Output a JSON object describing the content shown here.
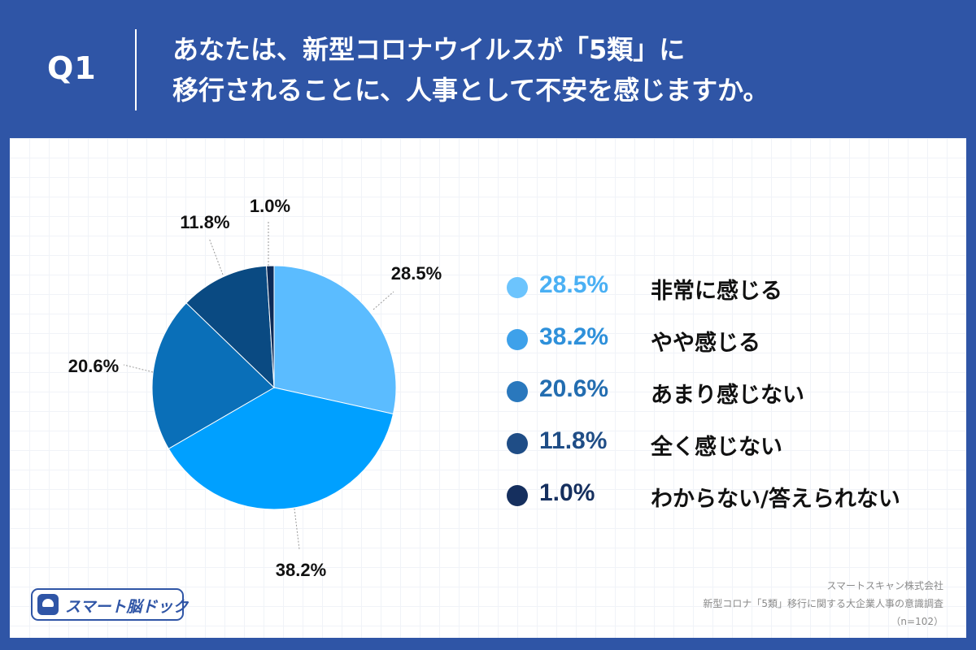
{
  "header": {
    "q_label": "Q1",
    "title_line1": "あなたは、新型コロナウイルスが「5類」に",
    "title_line2": "移行されることに、人事として不安を感じますか。"
  },
  "chart_data": {
    "type": "pie",
    "title": "",
    "start_angle_deg": 0,
    "direction": "clockwise",
    "slices": [
      {
        "label": "非常に感じる",
        "value": 28.5,
        "display": "28.5%",
        "color": "#5bbcff"
      },
      {
        "label": "やや感じる",
        "value": 38.2,
        "display": "38.2%",
        "color": "#00a0ff"
      },
      {
        "label": "あまり感じない",
        "value": 20.6,
        "display": "20.6%",
        "color": "#0a6fb8"
      },
      {
        "label": "全く感じない",
        "value": 11.8,
        "display": "11.8%",
        "color": "#0a4a82"
      },
      {
        "label": "わからない/答えられない",
        "value": 1.0,
        "display": "1.0%",
        "color": "#0c2a57"
      }
    ],
    "legend_placement": "right"
  },
  "legend": {
    "items": [
      {
        "pct": "28.5%",
        "label": "非常に感じる",
        "dot_color": "#6cc4fd",
        "pct_color": "#4ab0f4"
      },
      {
        "pct": "38.2%",
        "label": "やや感じる",
        "dot_color": "#3ea1ea",
        "pct_color": "#2e90da"
      },
      {
        "pct": "20.6%",
        "label": "あまり感じない",
        "dot_color": "#2a78bd",
        "pct_color": "#236db0"
      },
      {
        "pct": "11.8%",
        "label": "全く感じない",
        "dot_color": "#1f4d86",
        "pct_color": "#1f4d86"
      },
      {
        "pct": "1.0%",
        "label": "わからない/答えられない",
        "dot_color": "#152f5e",
        "pct_color": "#152f5e"
      }
    ]
  },
  "footer": {
    "logo_text": "スマート脳ドック",
    "company": "スマートスキャン株式会社",
    "survey": "新型コロナ「5類」移行に関する大企業人事の意識調査",
    "sample": "（n=102）"
  },
  "colors": {
    "background": "#2f55a6",
    "card": "#ffffff"
  }
}
